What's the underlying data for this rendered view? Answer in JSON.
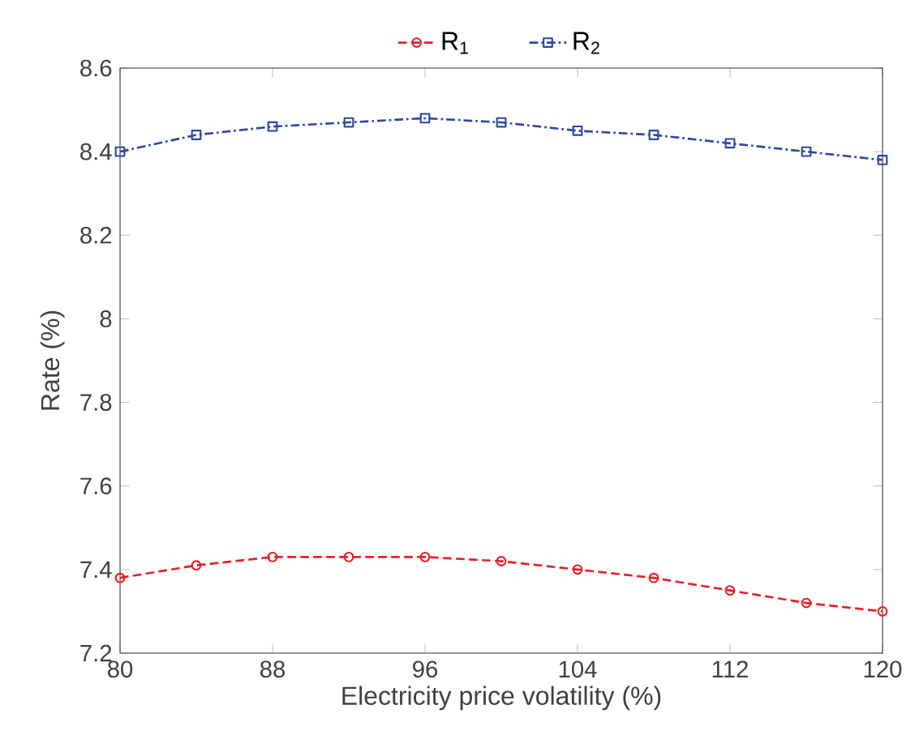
{
  "chart_data": {
    "type": "line",
    "xlabel": "Electricity price volatility (%)",
    "ylabel": "Rate (%)",
    "x": [
      80,
      84,
      88,
      92,
      96,
      100,
      104,
      108,
      112,
      116,
      120
    ],
    "xlim": [
      80,
      120
    ],
    "xticks": [
      80,
      88,
      96,
      104,
      112,
      120
    ],
    "ylim": [
      7.2,
      8.6
    ],
    "yticks": [
      7.2,
      7.4,
      7.6,
      7.8,
      8,
      8.2,
      8.4,
      8.6
    ],
    "legend": "top",
    "grid": false,
    "series": [
      {
        "name": "R$_{1}$",
        "color": "#e8202a",
        "marker": "circle",
        "line_style": "dashed",
        "values": [
          7.38,
          7.41,
          7.43,
          7.43,
          7.43,
          7.42,
          7.4,
          7.38,
          7.35,
          7.32,
          7.3
        ]
      },
      {
        "name": "R$_{2}$",
        "color": "#2a48a8",
        "marker": "square",
        "line_style": "dashdot",
        "values": [
          8.4,
          8.44,
          8.46,
          8.47,
          8.48,
          8.47,
          8.45,
          8.44,
          8.42,
          8.4,
          8.38
        ]
      }
    ]
  }
}
